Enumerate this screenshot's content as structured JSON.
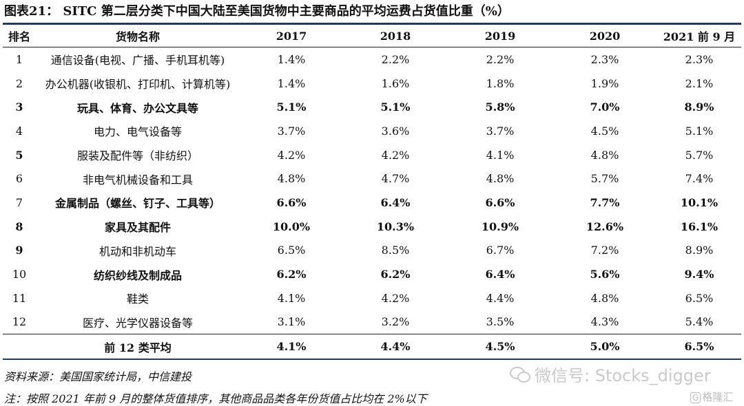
{
  "title": "图表21： SITC 第二层分类下中国大陆至美国货物中主要商品的平均运费占货值比重（%）",
  "headers": [
    "排名",
    "货物名称",
    "2017",
    "2018",
    "2019",
    "2020",
    "2021 前 9 月"
  ],
  "rows": [
    {
      "rank": "1",
      "name": "通信设备(电视、广播、手机耳机等)",
      "values": [
        "1.4%",
        "2.2%",
        "2.2%",
        "2.3%",
        "2.3%"
      ],
      "bold": false
    },
    {
      "rank": "2",
      "name": "办公机器(收银机、打印机、计算机等)",
      "values": [
        "1.4%",
        "1.6%",
        "1.8%",
        "1.9%",
        "2.1%"
      ],
      "bold": false
    },
    {
      "rank": "3",
      "name": "玩具、体育、办公文具等",
      "values": [
        "5.1%",
        "5.1%",
        "5.8%",
        "7.0%",
        "8.9%"
      ],
      "bold": true
    },
    {
      "rank": "4",
      "name": "电力、电气设备等",
      "values": [
        "3.7%",
        "3.6%",
        "3.7%",
        "4.5%",
        "5.1%"
      ],
      "bold": false
    },
    {
      "rank": "5",
      "name": "服装及配件等（非纺织）",
      "values": [
        "4.2%",
        "4.2%",
        "4.1%",
        "4.8%",
        "5.7%"
      ],
      "bold": false,
      "rank_bold": true
    },
    {
      "rank": "6",
      "name": "非电气机械设备和工具",
      "values": [
        "4.8%",
        "4.7%",
        "4.8%",
        "5.7%",
        "7.4%"
      ],
      "bold": false
    },
    {
      "rank": "7",
      "name": "金属制品（螺丝、钉子、工具等）",
      "values": [
        "6.6%",
        "6.4%",
        "6.6%",
        "7.7%",
        "10.1%"
      ],
      "bold": true,
      "rank_bold": false
    },
    {
      "rank": "8",
      "name": "家具及其配件",
      "values": [
        "10.0%",
        "10.3%",
        "10.9%",
        "12.6%",
        "16.1%"
      ],
      "bold": true
    },
    {
      "rank": "9",
      "name": "机动和非机动车",
      "values": [
        "6.5%",
        "8.5%",
        "6.7%",
        "7.2%",
        "8.9%"
      ],
      "bold": false,
      "rank_bold": true
    },
    {
      "rank": "10",
      "name": "纺织纱线及制成品",
      "values": [
        "6.2%",
        "6.2%",
        "6.4%",
        "5.6%",
        "9.4%"
      ],
      "bold": true,
      "rank_bold": false
    },
    {
      "rank": "11",
      "name": "鞋类",
      "values": [
        "4.1%",
        "4.2%",
        "4.4%",
        "4.8%",
        "6.5%"
      ],
      "bold": false
    },
    {
      "rank": "12",
      "name": "医疗、光学仪器设备等",
      "values": [
        "3.1%",
        "3.2%",
        "3.5%",
        "4.3%",
        "5.4%"
      ],
      "bold": false
    }
  ],
  "footer": {
    "label": "前 12 类平均",
    "values": [
      "4.1%",
      "4.4%",
      "4.5%",
      "5.0%",
      "6.5%"
    ]
  },
  "source": "资料来源：美国国家统计局，中信建投",
  "note": "注：按照 2021 年前 9 月的整体货值排序，其他商品品类各年份货值占比均在 2%以下",
  "watermark": "微信号: Stocks_digger",
  "logo": {
    "mark": "G",
    "text": "格隆汇"
  }
}
